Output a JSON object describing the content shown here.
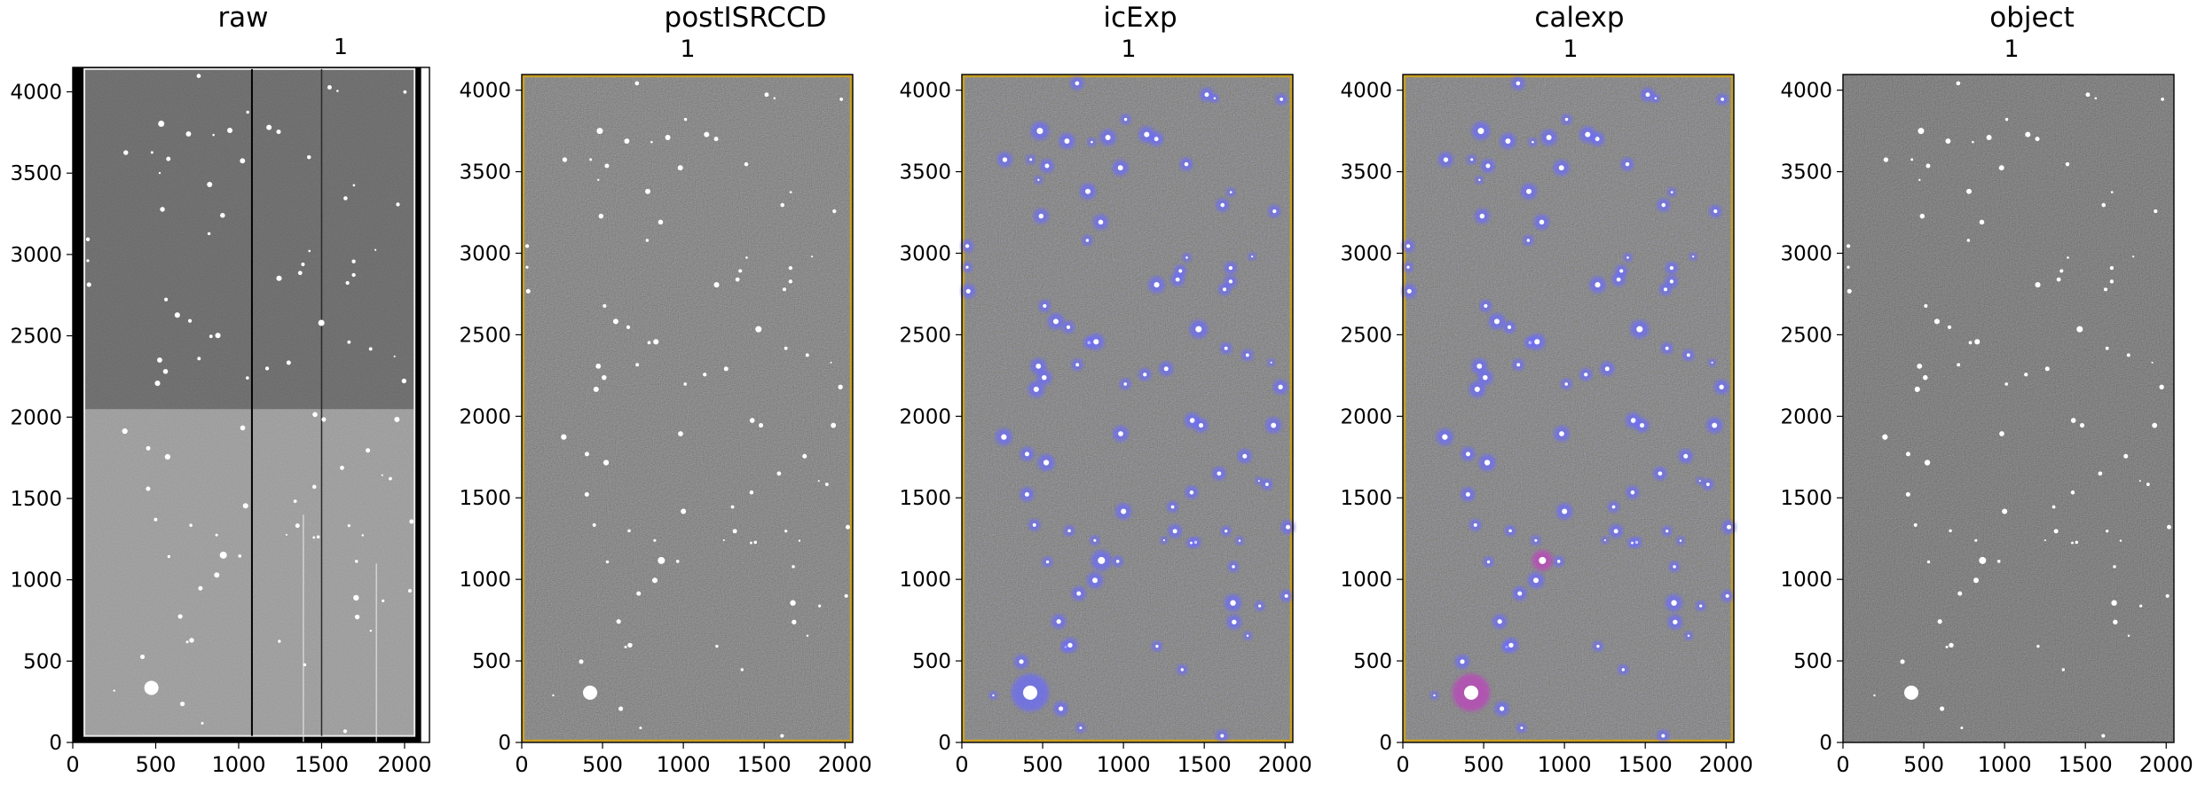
{
  "panels": [
    {
      "title": "raw",
      "subtitle": "1",
      "xticks": [
        "0",
        "500",
        "1000",
        "1500",
        "2000"
      ],
      "yticks": [
        "0",
        "500",
        "1000",
        "1500",
        "2000",
        "2500",
        "3000",
        "3500",
        "4000"
      ],
      "xlim": [
        0,
        2150
      ],
      "ylim": [
        0,
        4150
      ],
      "overlay": "none"
    },
    {
      "title": "postISRCCD",
      "subtitle": "1",
      "xticks": [
        "0",
        "500",
        "1000",
        "1500",
        "2000"
      ],
      "yticks": [
        "0",
        "500",
        "1000",
        "1500",
        "2000",
        "2500",
        "3000",
        "3500",
        "4000"
      ],
      "xlim": [
        0,
        2048
      ],
      "ylim": [
        0,
        4096
      ],
      "overlay": "yellow-border"
    },
    {
      "title": "icExp",
      "subtitle": "1",
      "xticks": [
        "0",
        "500",
        "1000",
        "1500",
        "2000"
      ],
      "yticks": [
        "0",
        "500",
        "1000",
        "1500",
        "2000",
        "2500",
        "3000",
        "3500",
        "4000"
      ],
      "xlim": [
        0,
        2048
      ],
      "ylim": [
        0,
        4096
      ],
      "overlay": "blue-detections"
    },
    {
      "title": "calexp",
      "subtitle": "1",
      "xticks": [
        "0",
        "500",
        "1000",
        "1500",
        "2000"
      ],
      "yticks": [
        "0",
        "500",
        "1000",
        "1500",
        "2000",
        "2500",
        "3000",
        "3500",
        "4000"
      ],
      "xlim": [
        0,
        2048
      ],
      "ylim": [
        0,
        4096
      ],
      "overlay": "blue-and-magenta-detections"
    },
    {
      "title": "object",
      "subtitle": "1",
      "xticks": [
        "0",
        "500",
        "1000",
        "1500",
        "2000"
      ],
      "yticks": [
        "0",
        "500",
        "1000",
        "1500",
        "2000",
        "2500",
        "3000",
        "3500",
        "4000"
      ],
      "xlim": [
        0,
        2048
      ],
      "ylim": [
        0,
        4096
      ],
      "overlay": "none"
    }
  ],
  "colors": {
    "raw_top": "#606060",
    "raw_bottom": "#9a9a9a",
    "noise_bg": "#4f4f4f",
    "detection_blue": "#6a6aff",
    "detection_magenta": "#c040c0",
    "border_yellow": "#c8a020"
  }
}
